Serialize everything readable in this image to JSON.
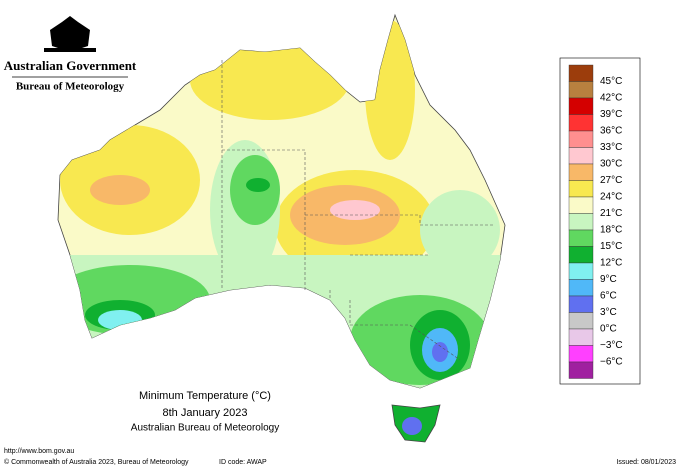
{
  "header": {
    "agency": "Australian Government",
    "bureau": "Bureau of Meteorology"
  },
  "map_title": {
    "title": "Minimum Temperature (°C)",
    "date": "8th January 2023",
    "source": "Australian Bureau of Meteorology"
  },
  "legend": {
    "labels": [
      "45°C",
      "42°C",
      "39°C",
      "36°C",
      "33°C",
      "30°C",
      "27°C",
      "24°C",
      "21°C",
      "18°C",
      "15°C",
      "12°C",
      "9°C",
      "6°C",
      "3°C",
      "0°C",
      "−3°C",
      "−6°C"
    ],
    "colors": [
      "#9c3d0c",
      "#b8803f",
      "#d40000",
      "#ff3333",
      "#ff8f8f",
      "#ffc8d0",
      "#f8b868",
      "#f8e850",
      "#fafac8",
      "#c8f5c0",
      "#60d860",
      "#10b030",
      "#80f0f0",
      "#50b8f8",
      "#6070f0",
      "#c8c8c8",
      "#e8c8e8",
      "#ff40ff",
      "#a020a0"
    ]
  },
  "footer": {
    "url": "http://www.bom.gov.au",
    "copyright": "© Commonwealth of Australia 2023, Bureau of Meteorology",
    "id_code": "ID code: AWAP",
    "issued": "Issued: 08/01/2023"
  }
}
